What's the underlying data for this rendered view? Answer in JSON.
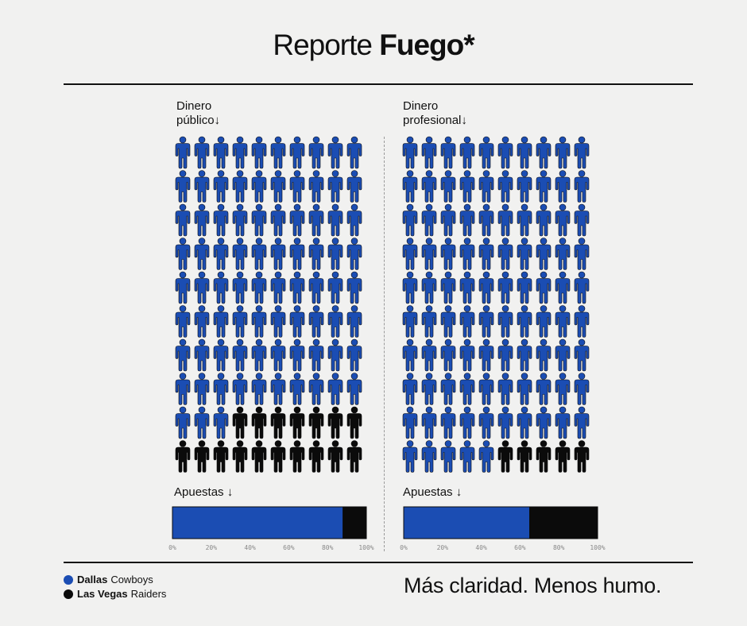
{
  "header": {
    "title_regular": "Reporte",
    "title_bold": "Fuego*"
  },
  "colors": {
    "dallas": "#1b4db3",
    "raiders": "#0b0b0b",
    "background": "#f1f1f0"
  },
  "chart_data": [
    {
      "type": "pictogram",
      "label_line1": "Dinero",
      "label_line2": "público↓",
      "rows": 10,
      "cols": 10,
      "series": [
        {
          "name": "Dallas Cowboys",
          "count": 83
        },
        {
          "name": "Las Vegas Raiders",
          "count": 17
        }
      ]
    },
    {
      "type": "pictogram",
      "label_line1": "Dinero",
      "label_line2": "profesional↓",
      "rows": 10,
      "cols": 10,
      "series": [
        {
          "name": "Dallas Cowboys",
          "count": 95
        },
        {
          "name": "Las Vegas Raiders",
          "count": 5
        }
      ]
    },
    {
      "type": "bar",
      "label": "Apuestas ↓",
      "orientation": "horizontal-stacked",
      "series": [
        {
          "name": "Dallas Cowboys",
          "value": 88
        },
        {
          "name": "Las Vegas Raiders",
          "value": 12
        }
      ],
      "xlim": [
        0,
        100
      ],
      "ticks": [
        "0%",
        "20%",
        "40%",
        "60%",
        "80%",
        "100%"
      ]
    },
    {
      "type": "bar",
      "label": "Apuestas ↓",
      "orientation": "horizontal-stacked",
      "series": [
        {
          "name": "Dallas Cowboys",
          "value": 65
        },
        {
          "name": "Las Vegas Raiders",
          "value": 35
        }
      ],
      "xlim": [
        0,
        100
      ],
      "ticks": [
        "0%",
        "20%",
        "40%",
        "60%",
        "80%",
        "100%"
      ]
    }
  ],
  "legend": [
    {
      "bold": "Dallas",
      "rest": "Cowboys"
    },
    {
      "bold": "Las Vegas",
      "rest": "Raiders"
    }
  ],
  "footer": {
    "slogan": "Más claridad. Menos humo."
  }
}
